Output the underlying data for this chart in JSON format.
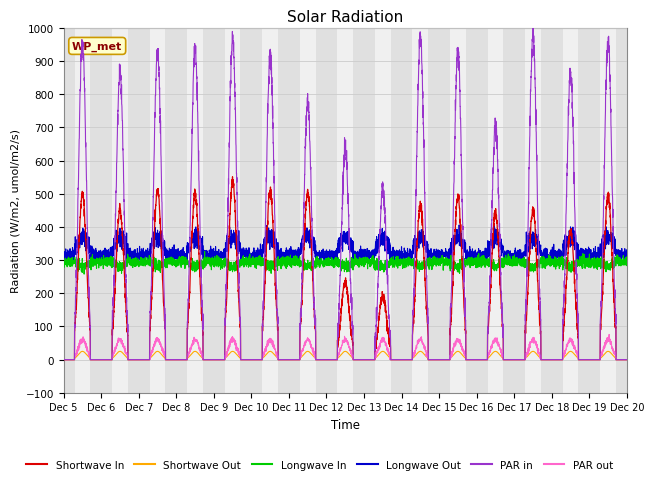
{
  "title": "Solar Radiation",
  "xlabel": "Time",
  "ylabel": "Radiation (W/m2, umol/m2/s)",
  "ylim": [
    -100,
    1000
  ],
  "xlim": [
    0,
    15
  ],
  "annotation": "WP_met",
  "x_tick_labels": [
    "Dec 5",
    "Dec 6",
    "Dec 7",
    "Dec 8",
    "Dec 9",
    "Dec 10",
    "Dec 11",
    "Dec 12",
    "Dec 13",
    "Dec 14",
    "Dec 15",
    "Dec 16",
    "Dec 17",
    "Dec 18",
    "Dec 19",
    "Dec 20"
  ],
  "series": {
    "shortwave_in": {
      "color": "#dd0000",
      "label": "Shortwave In"
    },
    "shortwave_out": {
      "color": "#ffaa00",
      "label": "Shortwave Out"
    },
    "longwave_in": {
      "color": "#00cc00",
      "label": "Longwave In"
    },
    "longwave_out": {
      "color": "#0000cc",
      "label": "Longwave Out"
    },
    "par_in": {
      "color": "#9933cc",
      "label": "PAR in"
    },
    "par_out": {
      "color": "#ff66cc",
      "label": "PAR out"
    }
  },
  "background_color": "#ffffff",
  "band_color_dark": "#e0e0e0",
  "band_color_light": "#f0f0f0",
  "grid_color": "#d8d8d8",
  "title_fontsize": 11,
  "fig_bg": "#ffffff"
}
